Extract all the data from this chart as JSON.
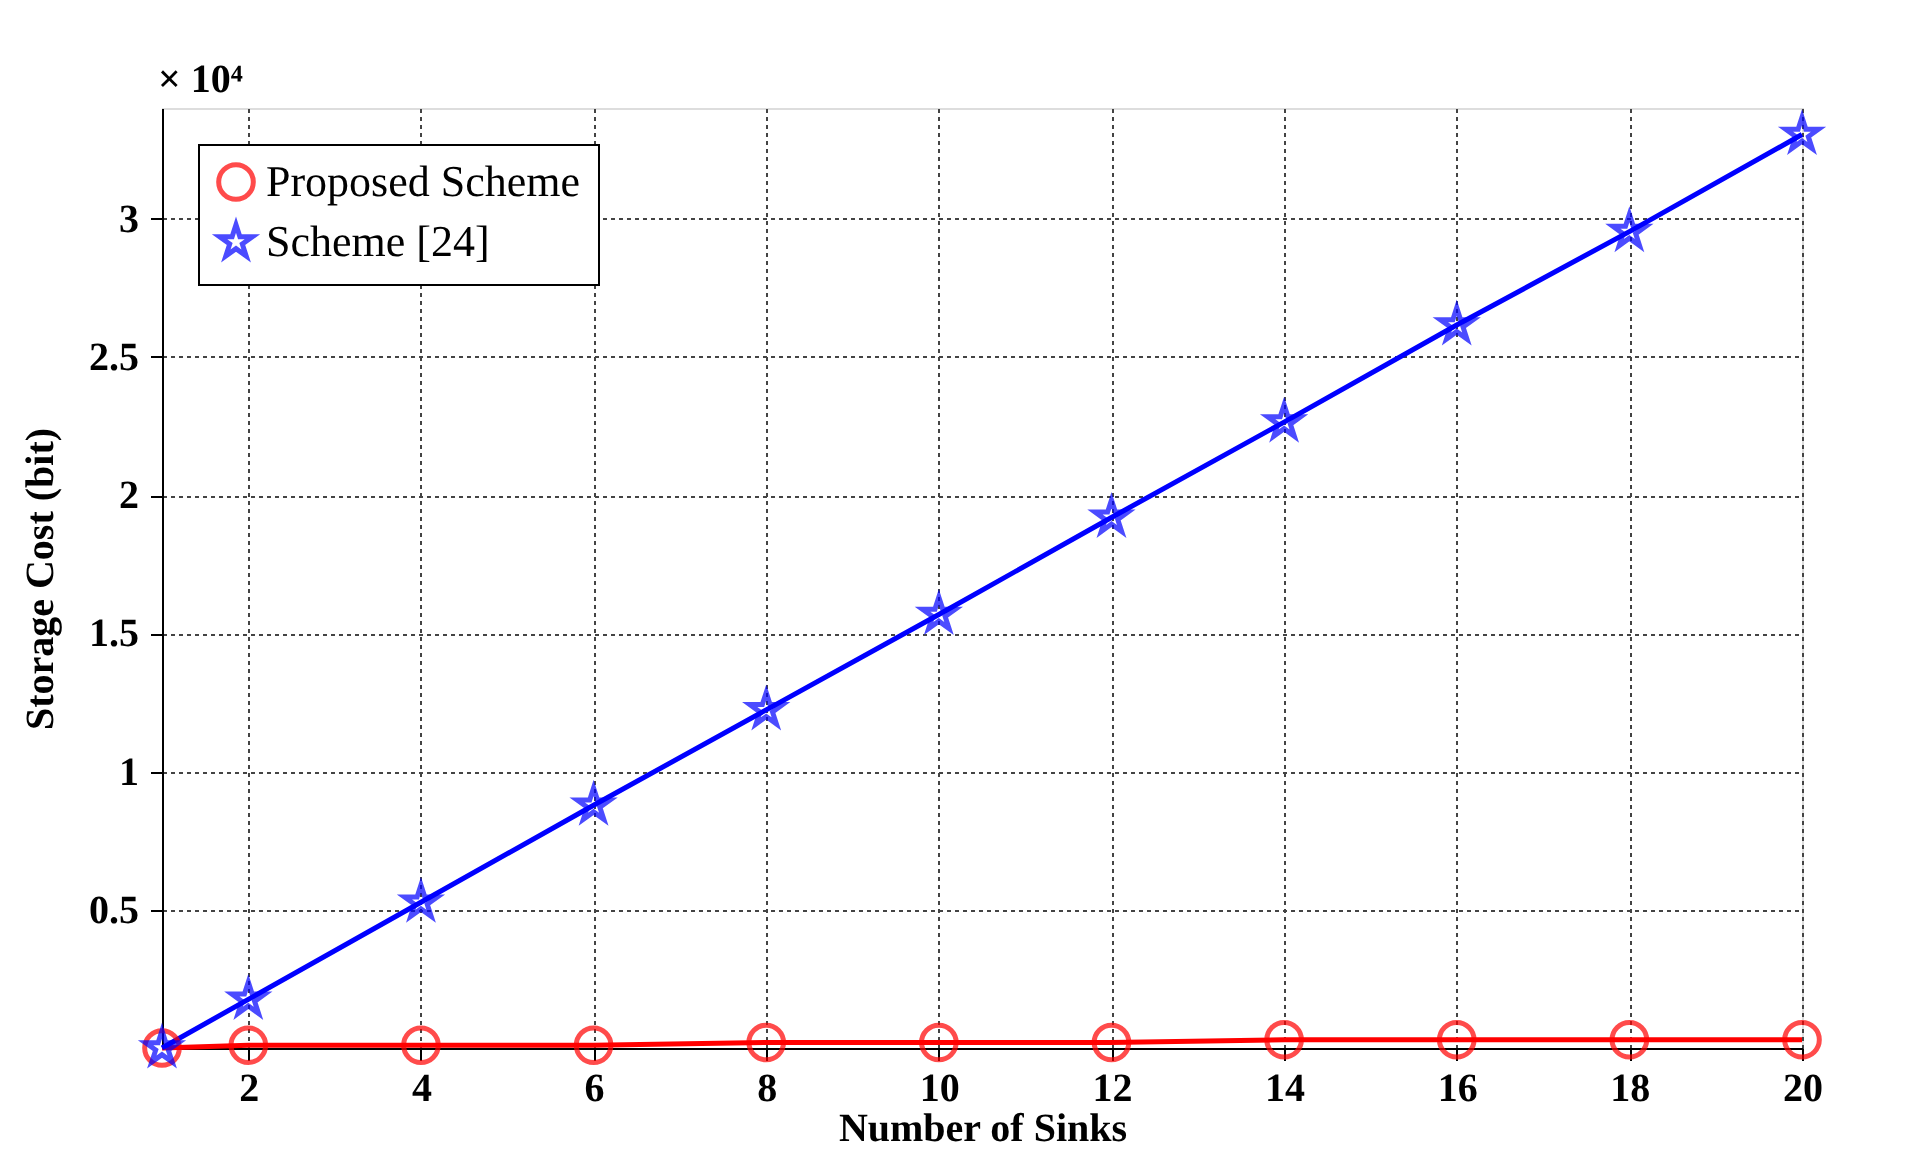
{
  "chart_data": {
    "type": "line",
    "xlabel": "Number of Sinks",
    "ylabel": "Storage Cost (bit)",
    "annotations": [
      "× 10⁴"
    ],
    "xlim": [
      1,
      20
    ],
    "xticks": [
      2,
      4,
      6,
      8,
      10,
      12,
      14,
      16,
      18,
      20
    ],
    "ylim": [
      0,
      3.4
    ],
    "yticks": [
      0.5,
      1,
      1.5,
      2,
      2.5,
      3
    ],
    "grid": true,
    "legend": "top left",
    "line_style": "solid",
    "series": [
      {
        "name": "Proposed Scheme",
        "color": "#ff0000",
        "marker": "circle",
        "x": [
          1,
          2,
          4,
          6,
          8,
          10,
          12,
          14,
          16,
          18,
          20
        ],
        "values": [
          0,
          0.01,
          0.01,
          0.01,
          0.02,
          0.02,
          0.02,
          0.03,
          0.03,
          0.03,
          0.03
        ]
      },
      {
        "name": "Scheme [24]",
        "color": "#0000ff",
        "marker": "star",
        "x": [
          1,
          2,
          4,
          6,
          8,
          10,
          12,
          14,
          16,
          18,
          20
        ],
        "values": [
          0,
          0.176,
          0.527,
          0.878,
          1.223,
          1.568,
          1.919,
          2.264,
          2.615,
          2.953,
          3.304
        ]
      }
    ]
  }
}
